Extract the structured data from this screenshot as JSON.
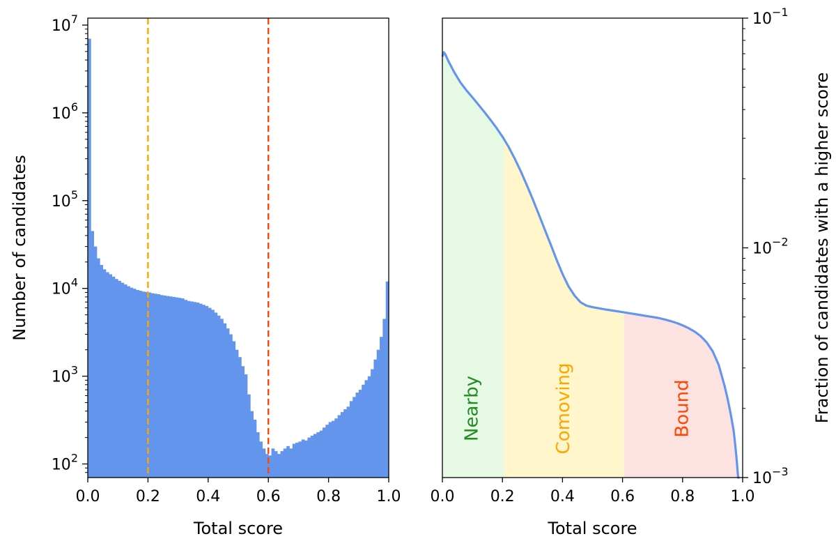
{
  "chart_data": [
    {
      "type": "bar",
      "title": "",
      "xlabel": "Total score",
      "ylabel": "Number of candidates",
      "xlim": [
        0.0,
        1.0
      ],
      "ylim": [
        70,
        12000000
      ],
      "yscale": "log",
      "xticks": [
        0.0,
        0.2,
        0.4,
        0.6,
        0.8,
        1.0
      ],
      "xtick_labels": [
        "0.0",
        "0.2",
        "0.4",
        "0.6",
        "0.8",
        "1.0"
      ],
      "yticks": [
        {
          "value": 100,
          "base": "10",
          "exp": "2"
        },
        {
          "value": 1000,
          "base": "10",
          "exp": "3"
        },
        {
          "value": 10000,
          "base": "10",
          "exp": "4"
        },
        {
          "value": 100000,
          "base": "10",
          "exp": "5"
        },
        {
          "value": 1000000,
          "base": "10",
          "exp": "6"
        },
        {
          "value": 10000000,
          "base": "10",
          "exp": "7"
        }
      ],
      "bin_width": 0.01,
      "bin_starts": [
        0.0,
        0.01,
        0.02,
        0.03,
        0.04,
        0.05,
        0.06,
        0.07,
        0.08,
        0.09,
        0.1,
        0.11,
        0.12,
        0.13,
        0.14,
        0.15,
        0.16,
        0.17,
        0.18,
        0.19,
        0.2,
        0.21,
        0.22,
        0.23,
        0.24,
        0.25,
        0.26,
        0.27,
        0.28,
        0.29,
        0.3,
        0.31,
        0.32,
        0.33,
        0.34,
        0.35,
        0.36,
        0.37,
        0.38,
        0.39,
        0.4,
        0.41,
        0.42,
        0.43,
        0.44,
        0.45,
        0.46,
        0.47,
        0.48,
        0.49,
        0.5,
        0.51,
        0.52,
        0.53,
        0.54,
        0.55,
        0.56,
        0.57,
        0.58,
        0.59,
        0.6,
        0.61,
        0.62,
        0.63,
        0.64,
        0.65,
        0.66,
        0.67,
        0.68,
        0.69,
        0.7,
        0.71,
        0.72,
        0.73,
        0.74,
        0.75,
        0.76,
        0.77,
        0.78,
        0.79,
        0.8,
        0.81,
        0.82,
        0.83,
        0.84,
        0.85,
        0.86,
        0.87,
        0.88,
        0.89,
        0.9,
        0.91,
        0.92,
        0.93,
        0.94,
        0.95,
        0.96,
        0.97,
        0.98,
        0.99
      ],
      "values": [
        7000000,
        45000,
        30000,
        22000,
        18500,
        16500,
        15300,
        14500,
        13600,
        12800,
        12200,
        11600,
        11100,
        10600,
        10200,
        9900,
        9600,
        9400,
        9200,
        9100,
        9000,
        8800,
        8700,
        8600,
        8400,
        8300,
        8200,
        8100,
        8000,
        7900,
        7800,
        7700,
        7400,
        7200,
        7100,
        7000,
        6900,
        6700,
        6500,
        6300,
        6000,
        5700,
        5300,
        4900,
        4500,
        4000,
        3500,
        3000,
        2500,
        2000,
        1650,
        1300,
        1050,
        620,
        400,
        320,
        230,
        180,
        150,
        130,
        125,
        150,
        140,
        130,
        140,
        150,
        160,
        150,
        170,
        175,
        180,
        190,
        185,
        200,
        210,
        220,
        230,
        240,
        260,
        280,
        300,
        310,
        330,
        360,
        390,
        420,
        450,
        520,
        580,
        650,
        700,
        800,
        900,
        1000,
        1200,
        1550,
        2000,
        2800,
        4500,
        12000
      ],
      "color": "#6495ED",
      "thresholds": [
        {
          "x": 0.2,
          "color": "#FFA500"
        },
        {
          "x": 0.6,
          "color": "#FF4500"
        }
      ]
    },
    {
      "type": "area",
      "title": "",
      "xlabel": "Total score",
      "ylabel": "Fraction of candidates with a higher score",
      "y_axis_side": "right",
      "xlim": [
        0.0,
        1.0
      ],
      "ylim": [
        0.001,
        0.1
      ],
      "yscale": "log",
      "xticks": [
        0.0,
        0.2,
        0.4,
        0.6,
        0.8,
        1.0
      ],
      "xtick_labels": [
        "0.0",
        "0.2",
        "0.4",
        "0.6",
        "0.8",
        "1.0"
      ],
      "yticks": [
        {
          "value": 0.001,
          "base": "10",
          "exp": "−3"
        },
        {
          "value": 0.01,
          "base": "10",
          "exp": "−2"
        },
        {
          "value": 0.1,
          "base": "10",
          "exp": "−1"
        }
      ],
      "x": [
        0.0,
        0.005,
        0.01,
        0.02,
        0.04,
        0.06,
        0.08,
        0.1,
        0.12,
        0.14,
        0.16,
        0.18,
        0.2,
        0.22,
        0.24,
        0.26,
        0.28,
        0.3,
        0.32,
        0.34,
        0.36,
        0.38,
        0.4,
        0.42,
        0.44,
        0.46,
        0.48,
        0.5,
        0.52,
        0.54,
        0.56,
        0.58,
        0.6,
        0.62,
        0.64,
        0.66,
        0.68,
        0.7,
        0.72,
        0.74,
        0.76,
        0.78,
        0.8,
        0.82,
        0.84,
        0.86,
        0.88,
        0.9,
        0.92,
        0.94,
        0.95,
        0.96,
        0.97,
        0.975,
        0.98,
        0.985,
        0.99
      ],
      "y": [
        0.068,
        0.071,
        0.0695,
        0.065,
        0.058,
        0.0525,
        0.0485,
        0.0452,
        0.042,
        0.039,
        0.0361,
        0.0333,
        0.0305,
        0.0276,
        0.0246,
        0.0217,
        0.0189,
        0.0164,
        0.0141,
        0.0121,
        0.0104,
        0.0089,
        0.0077,
        0.0068,
        0.0062,
        0.0058,
        0.0056,
        0.00552,
        0.00546,
        0.0054,
        0.00535,
        0.0053,
        0.00525,
        0.0052,
        0.00515,
        0.0051,
        0.00505,
        0.005,
        0.00495,
        0.00488,
        0.0048,
        0.00471,
        0.0046,
        0.00447,
        0.00432,
        0.00413,
        0.00388,
        0.00355,
        0.0031,
        0.0025,
        0.0022,
        0.0019,
        0.0016,
        0.0014,
        0.0012,
        0.001,
        0.0009
      ],
      "line_color": "#6495ED",
      "regions": [
        {
          "label": "Nearby",
          "x_start": 0.0,
          "x_end": 0.205,
          "fill": "#E5F9E5",
          "label_color": "#228B22",
          "label_x": 0.1
        },
        {
          "label": "Comoving",
          "x_start": 0.205,
          "x_end": 0.605,
          "fill": "#FFF6CC",
          "label_color": "#FFA500",
          "label_x": 0.405
        },
        {
          "label": "Bound",
          "x_start": 0.605,
          "x_end": 0.99,
          "fill": "#FDE2E2",
          "label_color": "#FF4500",
          "label_x": 0.8
        }
      ]
    }
  ]
}
